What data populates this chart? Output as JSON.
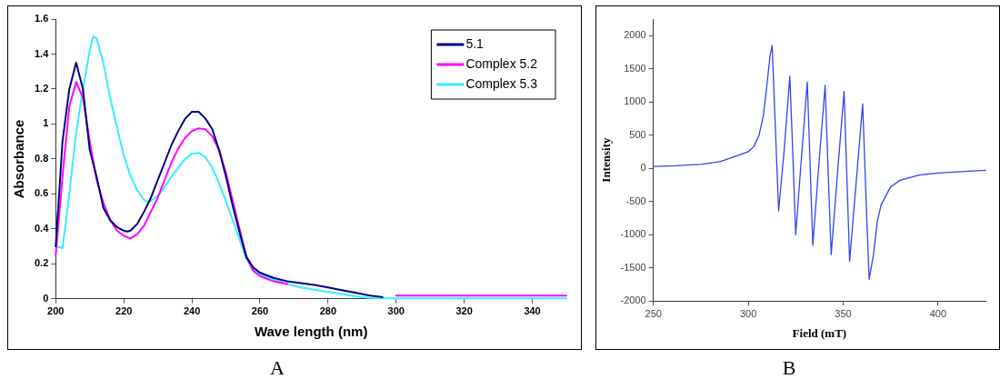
{
  "chart_data": [
    {
      "type": "line",
      "xlabel": "Wave length (nm)",
      "ylabel": "Absorbance",
      "annotations": [
        "A"
      ],
      "xlim": [
        200,
        350
      ],
      "xticks": [
        200,
        220,
        240,
        260,
        280,
        300,
        320,
        340
      ],
      "ylim": [
        0,
        1.6
      ],
      "yticks": [
        0,
        0.2,
        0.4,
        0.6,
        0.8,
        1,
        1.2,
        1.4,
        1.6
      ],
      "grid": false,
      "legend": "top right",
      "marker": "none",
      "line_style": "solid",
      "series": [
        {
          "name": "5.1",
          "color": "#000080",
          "x": [
            200,
            202,
            204,
            206,
            208,
            210,
            212,
            214,
            216,
            218,
            220,
            221,
            222,
            224,
            226,
            228,
            230,
            232,
            234,
            236,
            238,
            240,
            242,
            244,
            246,
            248,
            250,
            252,
            254,
            256,
            258,
            260,
            264,
            268,
            272,
            276,
            280,
            284,
            288,
            292,
            296
          ],
          "values": [
            0.3,
            0.9,
            1.2,
            1.35,
            1.2,
            0.85,
            0.7,
            0.52,
            0.45,
            0.41,
            0.39,
            0.385,
            0.39,
            0.43,
            0.5,
            0.58,
            0.68,
            0.78,
            0.88,
            0.96,
            1.03,
            1.07,
            1.07,
            1.03,
            0.97,
            0.85,
            0.7,
            0.53,
            0.38,
            0.24,
            0.18,
            0.15,
            0.12,
            0.1,
            0.09,
            0.08,
            0.065,
            0.05,
            0.035,
            0.02,
            0.01
          ]
        },
        {
          "name": "Complex 5.2",
          "color": "#ff00ff",
          "x": [
            200,
            202,
            204,
            206,
            208,
            210,
            212,
            214,
            216,
            218,
            220,
            222,
            224,
            226,
            228,
            230,
            232,
            234,
            236,
            238,
            240,
            242,
            244,
            246,
            248,
            250,
            252,
            254,
            256,
            258,
            260,
            264,
            268,
            272,
            300,
            350
          ],
          "values": [
            0.25,
            0.7,
            1.1,
            1.24,
            1.15,
            0.9,
            0.68,
            0.55,
            0.45,
            0.39,
            0.36,
            0.345,
            0.37,
            0.42,
            0.5,
            0.58,
            0.68,
            0.78,
            0.86,
            0.92,
            0.96,
            0.975,
            0.97,
            0.93,
            0.85,
            0.72,
            0.56,
            0.4,
            0.24,
            0.16,
            0.13,
            0.1,
            0.085,
            null,
            0.018,
            0.018
          ]
        },
        {
          "name": "Complex 5.3",
          "color": "#33eeff",
          "x": [
            200,
            202,
            204,
            206,
            208,
            210,
            211,
            212,
            214,
            216,
            218,
            220,
            222,
            224,
            226,
            227,
            228,
            230,
            232,
            234,
            236,
            238,
            240,
            242,
            244,
            246,
            248,
            250,
            252,
            254,
            256,
            258,
            260,
            264,
            268,
            272,
            276,
            280,
            284,
            288,
            292,
            296,
            350
          ],
          "values": [
            0.3,
            0.29,
            0.6,
            0.95,
            1.2,
            1.42,
            1.5,
            1.49,
            1.35,
            1.15,
            0.98,
            0.82,
            0.7,
            0.62,
            0.565,
            0.555,
            0.56,
            0.59,
            0.64,
            0.7,
            0.75,
            0.8,
            0.83,
            0.835,
            0.81,
            0.75,
            0.66,
            0.56,
            0.45,
            0.34,
            0.23,
            0.17,
            0.14,
            0.11,
            0.085,
            0.065,
            0.052,
            0.04,
            0.027,
            0.015,
            0.005,
            0.003,
            0.003
          ]
        }
      ]
    },
    {
      "type": "line",
      "xlabel": "Field (mT)",
      "ylabel": "Intensity",
      "annotations": [
        "B"
      ],
      "xlim": [
        250,
        425
      ],
      "xticks": [
        250,
        300,
        350,
        400
      ],
      "ylim": [
        -2000,
        2250
      ],
      "yticks": [
        -2000,
        -1500,
        -1000,
        -500,
        0,
        500,
        1000,
        1500,
        2000
      ],
      "grid": false,
      "legend": false,
      "marker": "none",
      "line_style": "solid",
      "series": [
        {
          "color": "#3344ee",
          "x": [
            250,
            262,
            275,
            285,
            290,
            295,
            300,
            303,
            305.7,
            308,
            310,
            311.5,
            312.6,
            314.3,
            316,
            319,
            321.9,
            323.5,
            325,
            328,
            331.1,
            332.6,
            334,
            337.2,
            340.5,
            342.1,
            343.7,
            347.1,
            350.5,
            352,
            353.4,
            356.9,
            360.3,
            362,
            363.7,
            366,
            368,
            370,
            375,
            380,
            390,
            400,
            412,
            425
          ],
          "values": [
            30,
            40,
            60,
            100,
            150,
            200,
            250,
            330,
            500,
            800,
            1300,
            1700,
            1850,
            600,
            -640,
            300,
            1390,
            200,
            -1000,
            150,
            1300,
            50,
            -1160,
            50,
            1250,
            -50,
            -1300,
            -50,
            1160,
            -150,
            -1400,
            -200,
            970,
            -400,
            -1670,
            -1300,
            -800,
            -550,
            -280,
            -180,
            -100,
            -70,
            -50,
            -30
          ]
        }
      ]
    }
  ]
}
